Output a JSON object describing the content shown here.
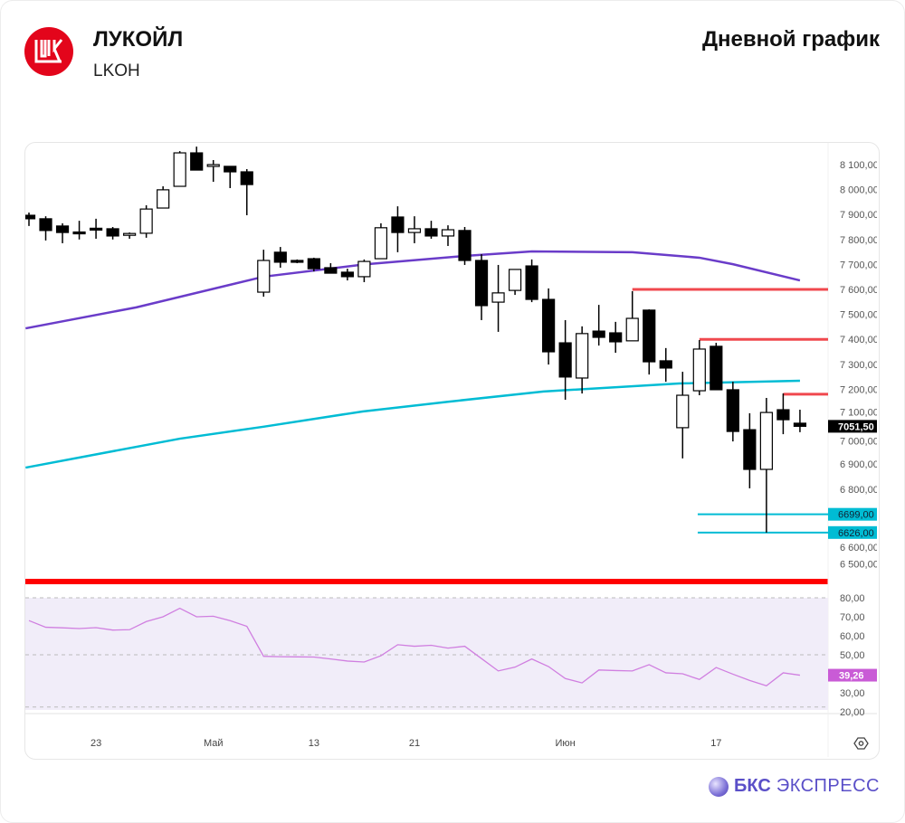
{
  "header": {
    "company": "ЛУКОЙЛ",
    "ticker": "LKOH",
    "chart_title": "Дневной график",
    "logo_text": "LUK"
  },
  "footer": {
    "brand_bold": "БКС",
    "brand_light": "ЭКСПРЕСС"
  },
  "colors": {
    "up": "#ffffff",
    "down": "#000000",
    "ma_slow": "#00bcd4",
    "ma_fast": "#6a3cc9",
    "resistance": "#f0484e",
    "support": "#00bcd4",
    "separator": "#ff0000",
    "rsi": "#d07fe0",
    "rsi_band": "#f1edf9",
    "rsi_label": "#c95bd6"
  },
  "chart_data": {
    "type": "candlestick",
    "title": "Дневной график",
    "price_axis": {
      "ticks": [
        8100,
        8000,
        7900,
        7800,
        7700,
        7600,
        7500,
        7400,
        7300,
        7200,
        7100,
        7000,
        6900,
        6800,
        6600,
        6500
      ],
      "tick_labels": [
        "8 100,00",
        "8 000,00",
        "7 900,00",
        "7 800,00",
        "7 700,00",
        "7 600,00",
        "7 500,00",
        "7 400,00",
        "7 300,00",
        "7 200,00",
        "7 100,00",
        "7 000,00",
        "6 900,00",
        "6 800,00",
        "6 600,00",
        "6 500,00"
      ],
      "range": [
        6410,
        8190
      ]
    },
    "last_price": {
      "value": 7051.5,
      "label": "7051,50"
    },
    "x_ticks": [
      {
        "index": 4,
        "label": "23"
      },
      {
        "index": 11,
        "label": "Май"
      },
      {
        "index": 17,
        "label": "13"
      },
      {
        "index": 23,
        "label": "21"
      },
      {
        "index": 32,
        "label": "Июн"
      },
      {
        "index": 41,
        "label": "17"
      }
    ],
    "ohlc": [
      [
        7897,
        7908,
        7854,
        7883
      ],
      [
        7883,
        7893,
        7796,
        7836
      ],
      [
        7854,
        7865,
        7785,
        7828
      ],
      [
        7830,
        7875,
        7800,
        7828
      ],
      [
        7845,
        7883,
        7803,
        7843
      ],
      [
        7843,
        7850,
        7800,
        7814
      ],
      [
        7817,
        7828,
        7803,
        7824
      ],
      [
        7825,
        7937,
        7807,
        7922
      ],
      [
        7926,
        8013,
        7926,
        7999
      ],
      [
        8013,
        8154,
        8013,
        8147
      ],
      [
        8147,
        8172,
        8078,
        8078
      ],
      [
        8093,
        8118,
        8031,
        8100
      ],
      [
        8093,
        8093,
        8006,
        8071
      ],
      [
        8071,
        8082,
        7897,
        8020
      ],
      [
        7589,
        7759,
        7571,
        7716
      ],
      [
        7749,
        7770,
        7687,
        7709
      ],
      [
        7716,
        7720,
        7705,
        7709
      ],
      [
        7723,
        7727,
        7672,
        7683
      ],
      [
        7687,
        7705,
        7665,
        7665
      ],
      [
        7669,
        7683,
        7636,
        7651
      ],
      [
        7651,
        7720,
        7629,
        7712
      ],
      [
        7723,
        7865,
        7723,
        7847
      ],
      [
        7890,
        7933,
        7749,
        7828
      ],
      [
        7828,
        7893,
        7785,
        7843
      ],
      [
        7843,
        7875,
        7803,
        7814
      ],
      [
        7814,
        7857,
        7774,
        7839
      ],
      [
        7836,
        7850,
        7698,
        7716
      ],
      [
        7716,
        7741,
        7477,
        7535
      ],
      [
        7549,
        7698,
        7430,
        7586
      ],
      [
        7596,
        7680,
        7578,
        7680
      ],
      [
        7694,
        7720,
        7549,
        7560
      ],
      [
        7560,
        7604,
        7299,
        7350
      ],
      [
        7386,
        7477,
        7158,
        7249
      ],
      [
        7245,
        7452,
        7183,
        7423
      ],
      [
        7433,
        7538,
        7375,
        7408
      ],
      [
        7426,
        7470,
        7346,
        7390
      ],
      [
        7394,
        7593,
        7394,
        7484
      ],
      [
        7517,
        7520,
        7259,
        7310
      ],
      [
        7314,
        7365,
        7230,
        7285
      ],
      [
        7046,
        7270,
        6923,
        7176
      ],
      [
        7194,
        7397,
        7176,
        7361
      ],
      [
        7372,
        7386,
        7198,
        7198
      ],
      [
        7198,
        7230,
        6991,
        7031
      ],
      [
        7038,
        7104,
        6803,
        6879
      ],
      [
        6879,
        7165,
        6626,
        7107
      ],
      [
        7118,
        7183,
        7020,
        7078
      ],
      [
        7064,
        7118,
        7028,
        7051.5
      ]
    ],
    "moving_averages": [
      {
        "name": "MA fast",
        "color": "#6a3cc9",
        "points": [
          [
            -0.2,
            7444
          ],
          [
            6.4,
            7528
          ],
          [
            14,
            7651
          ],
          [
            20,
            7700
          ],
          [
            26,
            7734
          ],
          [
            30,
            7752
          ],
          [
            36,
            7749
          ],
          [
            40,
            7727
          ],
          [
            42,
            7701
          ],
          [
            46,
            7636
          ]
        ]
      },
      {
        "name": "MA slow",
        "color": "#00bcd4",
        "points": [
          [
            -0.2,
            6886
          ],
          [
            9,
            7002
          ],
          [
            14,
            7050
          ],
          [
            19.9,
            7111
          ],
          [
            25,
            7150
          ],
          [
            30.7,
            7191
          ],
          [
            38.8,
            7223
          ],
          [
            46,
            7234
          ]
        ]
      }
    ],
    "levels": [
      {
        "price": 7600,
        "from_index": 36,
        "type": "resistance"
      },
      {
        "price": 7400,
        "from_index": 40,
        "type": "resistance"
      },
      {
        "price": 7180,
        "from_index": 45,
        "type": "resistance"
      },
      {
        "price": 6699,
        "from_index": 39.9,
        "type": "support",
        "label": "6699,00"
      },
      {
        "price": 6626,
        "from_index": 39.9,
        "type": "support",
        "label": "6626,00"
      }
    ],
    "rsi": {
      "ticks": [
        80,
        70,
        60,
        50,
        30,
        20
      ],
      "tick_labels": [
        "80,00",
        "70,00",
        "60,00",
        "50,00",
        "30,00",
        "20,00"
      ],
      "band": [
        30,
        70
      ],
      "band_lines": [
        80,
        50,
        20
      ],
      "range": [
        20,
        80
      ],
      "last_label": "39,26",
      "values": [
        68,
        64.5,
        64.2,
        63.8,
        64.3,
        63,
        63.2,
        67.5,
        70,
        74.5,
        70,
        70.3,
        68,
        65,
        49.2,
        49,
        48.9,
        48.8,
        47.8,
        46.7,
        46.2,
        49.5,
        55.3,
        54.5,
        55,
        53.5,
        54.5,
        48,
        41.5,
        43.5,
        47.8,
        43.8,
        37.5,
        35.2,
        42,
        41.7,
        41.5,
        44.8,
        40.5,
        40,
        37,
        43.3,
        39.8,
        36.5,
        33.7,
        40.5,
        39.26
      ]
    }
  }
}
